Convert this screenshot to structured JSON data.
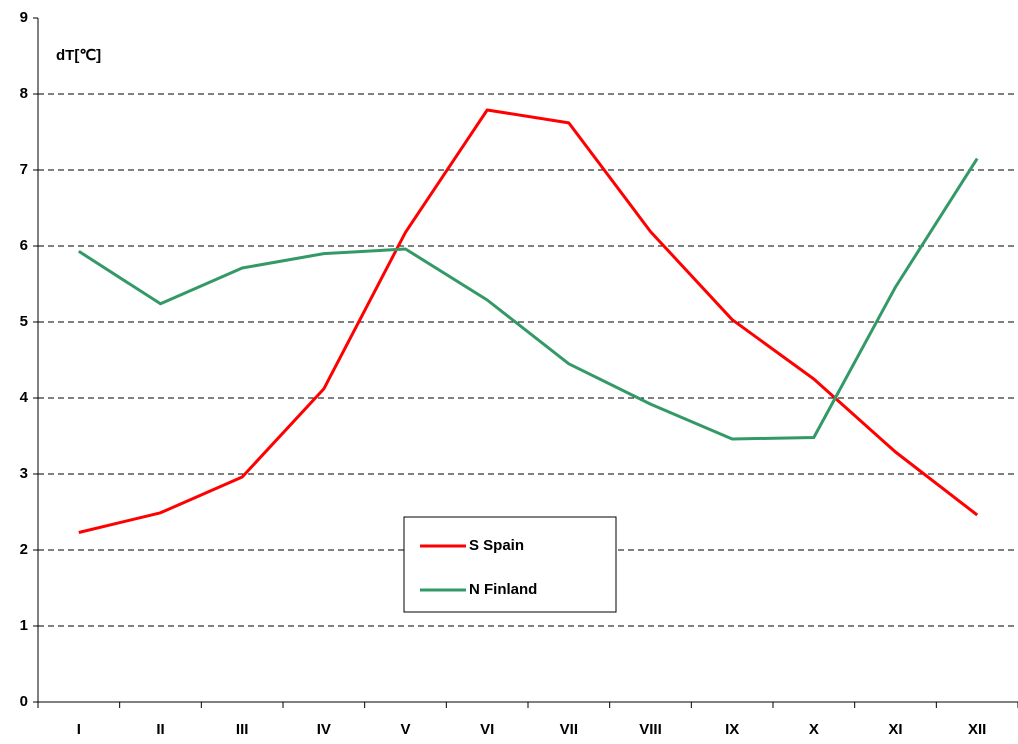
{
  "chart_data": {
    "type": "line",
    "y_label": "dT[℃]",
    "categories": [
      "I",
      "II",
      "III",
      "IV",
      "V",
      "VI",
      "VII",
      "VIII",
      "IX",
      "X",
      "XI",
      "XII"
    ],
    "series": [
      {
        "name": "S Spain",
        "color": "#ff0000",
        "values": [
          2.23,
          2.49,
          2.96,
          4.12,
          6.18,
          7.79,
          7.62,
          6.19,
          5.03,
          4.25,
          3.29,
          2.46
        ]
      },
      {
        "name": "N Finland",
        "color": "#339966",
        "values": [
          5.93,
          5.24,
          5.71,
          5.9,
          5.96,
          5.29,
          4.45,
          3.92,
          3.46,
          3.48,
          5.46,
          7.15
        ]
      }
    ],
    "ylim": [
      0,
      9
    ],
    "yticks": [
      0,
      1,
      2,
      3,
      4,
      5,
      6,
      7,
      8,
      9
    ],
    "grid": true
  }
}
